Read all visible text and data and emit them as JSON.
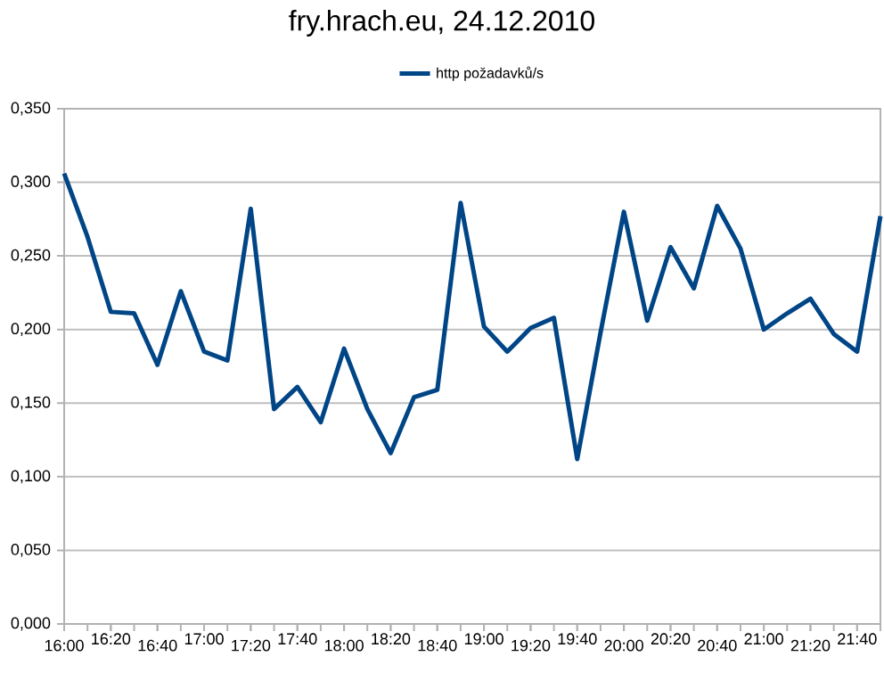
{
  "chart_data": {
    "type": "line",
    "title": "fry.hrach.eu, 24.12.2010",
    "categories": [
      "16:00",
      null,
      "16:20",
      null,
      "16:40",
      null,
      "17:00",
      null,
      "17:20",
      null,
      "17:40",
      null,
      "18:00",
      null,
      "18:20",
      null,
      "18:40",
      null,
      "19:00",
      null,
      "19:20",
      null,
      "19:40",
      null,
      "20:00",
      null,
      "20:20",
      null,
      "20:40",
      null,
      "21:00",
      null,
      "21:20",
      null,
      "21:40",
      null
    ],
    "series": [
      {
        "name": "http požadavků/s",
        "color": "#004586",
        "values": [
          0.306,
          0.263,
          0.212,
          0.211,
          0.176,
          0.226,
          0.185,
          0.179,
          0.282,
          0.146,
          0.161,
          0.137,
          0.187,
          0.146,
          0.116,
          0.154,
          0.159,
          0.286,
          0.202,
          0.185,
          0.201,
          0.208,
          0.112,
          0.198,
          0.28,
          0.206,
          0.256,
          0.228,
          0.284,
          0.255,
          0.2,
          0.211,
          0.221,
          0.197,
          0.185,
          0.277
        ]
      }
    ],
    "ylim": [
      0,
      0.35
    ],
    "yticks": [
      {
        "value": 0,
        "label": "0,000"
      },
      {
        "value": 0.05,
        "label": "0,050"
      },
      {
        "value": 0.1,
        "label": "0,100"
      },
      {
        "value": 0.15,
        "label": "0,150"
      },
      {
        "value": 0.2,
        "label": "0,200"
      },
      {
        "value": 0.25,
        "label": "0,250"
      },
      {
        "value": 0.3,
        "label": "0,300"
      },
      {
        "value": 0.35,
        "label": "0,350"
      }
    ],
    "grid": "y",
    "legend": "top",
    "marker": "none",
    "line_style": "solid"
  }
}
